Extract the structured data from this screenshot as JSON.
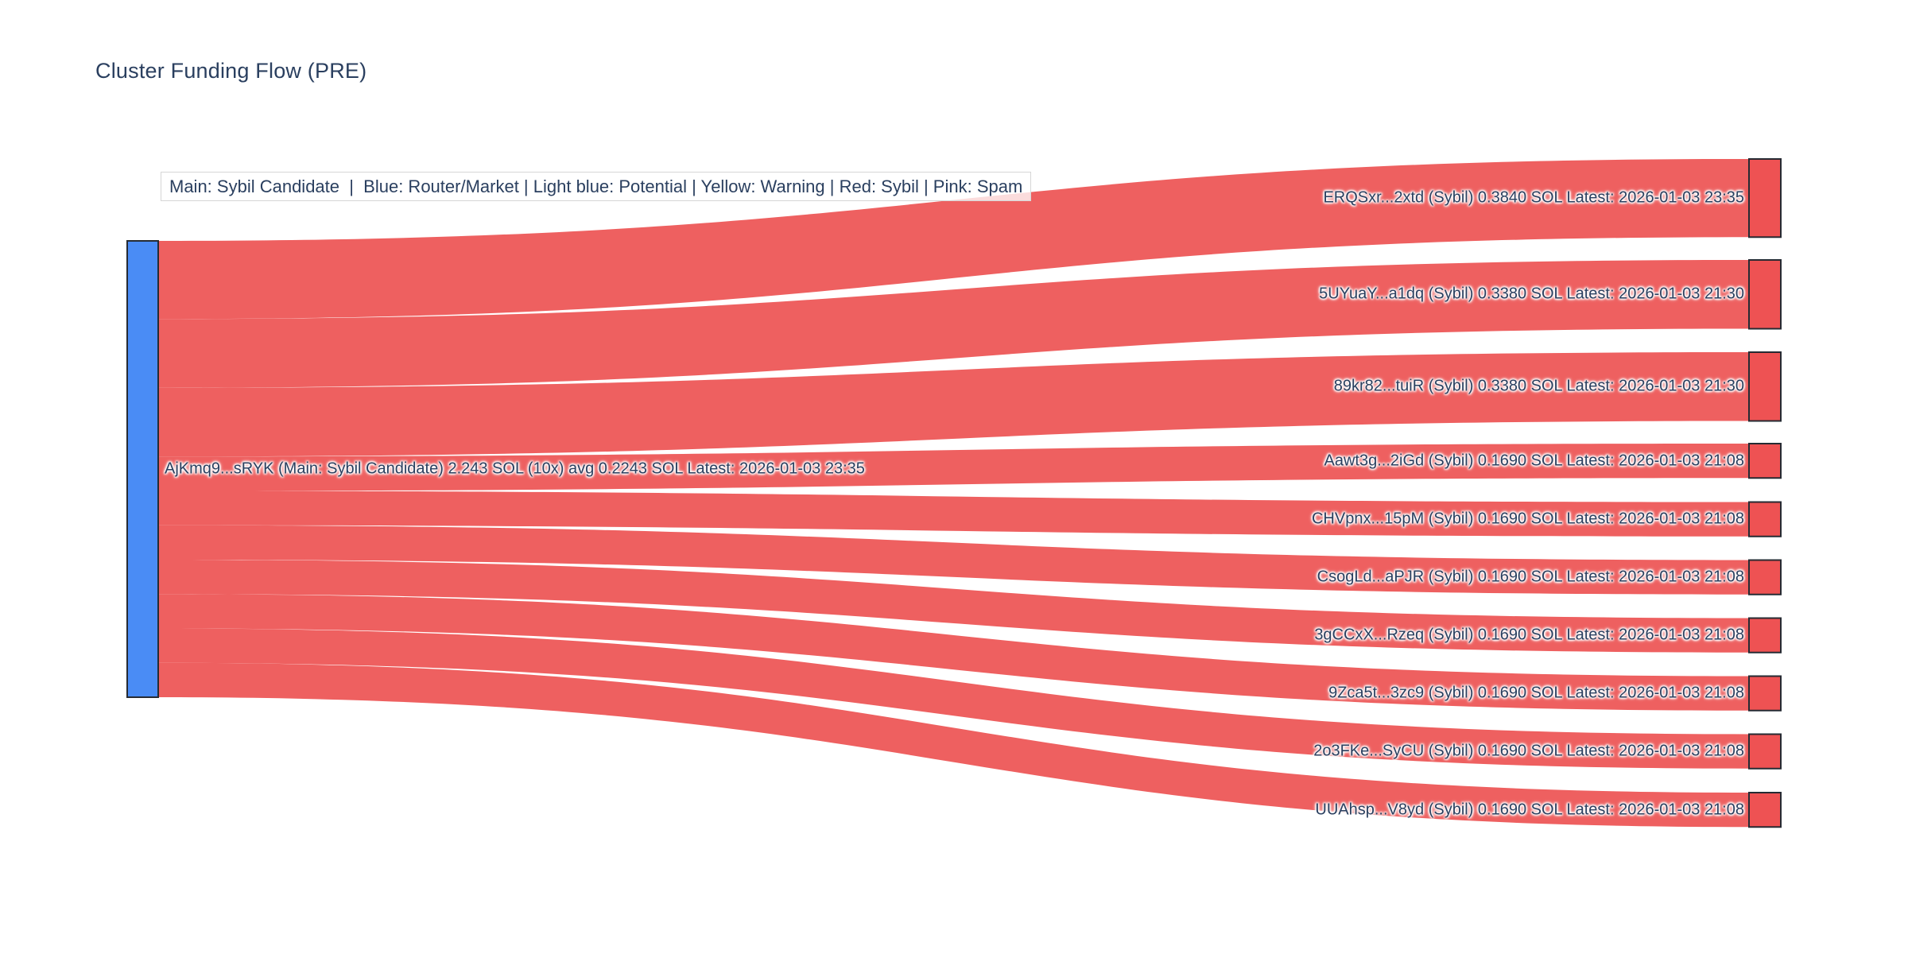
{
  "title": "Cluster Funding Flow (PRE)",
  "legend": {
    "text": "Main: Sybil Candidate  |  Blue: Router/Market | Light blue: Potential | Yellow: Warning | Red: Sybil | Pink: Spam"
  },
  "colors": {
    "main_node": "#4a8cf5",
    "sybil_node": "#ee5253",
    "link": "rgba(237,82,82,0.92)",
    "node_border": "#262b33",
    "label_text": "#2a3f5f",
    "title_text": "#2a3f5f",
    "legend_border": "#d6d6d6"
  },
  "chart_data": {
    "type": "sankey",
    "title": "Cluster Funding Flow (PRE)",
    "units": "SOL",
    "source_node": {
      "address": "AjKmq9...sRYK",
      "category": "Main: Sybil Candidate",
      "label": "AjKmq9...sRYK (Main: Sybil Candidate) 2.243 SOL (10x) avg 0.2243 SOL Latest: 2026-01-03 23:35",
      "total_sol": 2.243,
      "tx_count": "10x",
      "avg_sol": 0.2243,
      "latest": "2026-01-03 23:35"
    },
    "targets": [
      {
        "address": "ERQSxr...2xtd",
        "category": "Sybil",
        "value": 0.384,
        "latest": "2026-01-03 23:35",
        "label": "ERQSxr...2xtd (Sybil) 0.3840 SOL Latest: 2026-01-03 23:35"
      },
      {
        "address": "5UYuaY...a1dq",
        "category": "Sybil",
        "value": 0.338,
        "latest": "2026-01-03 21:30",
        "label": "5UYuaY...a1dq (Sybil) 0.3380 SOL Latest: 2026-01-03 21:30"
      },
      {
        "address": "89kr82...tuiR",
        "category": "Sybil",
        "value": 0.338,
        "latest": "2026-01-03 21:30",
        "label": "89kr82...tuiR (Sybil) 0.3380 SOL Latest: 2026-01-03 21:30"
      },
      {
        "address": "Aawt3g...2iGd",
        "category": "Sybil",
        "value": 0.169,
        "latest": "2026-01-03 21:08",
        "label": "Aawt3g...2iGd (Sybil) 0.1690 SOL Latest: 2026-01-03 21:08"
      },
      {
        "address": "CHVpnx...15pM",
        "category": "Sybil",
        "value": 0.169,
        "latest": "2026-01-03 21:08",
        "label": "CHVpnx...15pM (Sybil) 0.1690 SOL Latest: 2026-01-03 21:08"
      },
      {
        "address": "CsogLd...aPJR",
        "category": "Sybil",
        "value": 0.169,
        "latest": "2026-01-03 21:08",
        "label": "CsogLd...aPJR (Sybil) 0.1690 SOL Latest: 2026-01-03 21:08"
      },
      {
        "address": "3gCCxX...Rzeq",
        "category": "Sybil",
        "value": 0.169,
        "latest": "2026-01-03 21:08",
        "label": "3gCCxX...Rzeq (Sybil) 0.1690 SOL Latest: 2026-01-03 21:08"
      },
      {
        "address": "9Zca5t...3zc9",
        "category": "Sybil",
        "value": 0.169,
        "latest": "2026-01-03 21:08",
        "label": "9Zca5t...3zc9 (Sybil) 0.1690 SOL Latest: 2026-01-03 21:08"
      },
      {
        "address": "2o3FKe...SyCU",
        "category": "Sybil",
        "value": 0.169,
        "latest": "2026-01-03 21:08",
        "label": "2o3FKe...SyCU (Sybil) 0.1690 SOL Latest: 2026-01-03 21:08"
      },
      {
        "address": "UUAhsp...V8yd",
        "category": "Sybil",
        "value": 0.169,
        "latest": "2026-01-03 21:08",
        "label": "UUAhsp...V8yd (Sybil) 0.1690 SOL Latest: 2026-01-03 21:08"
      }
    ]
  }
}
